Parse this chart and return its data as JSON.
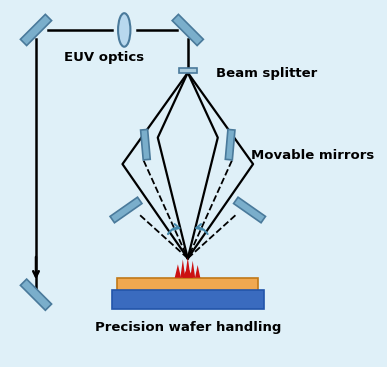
{
  "background_color": "#dff0f8",
  "mirror_color": "#7aaecb",
  "mirror_edge": "#4a7a9b",
  "beam_color": "#000000",
  "wafer_top_color": "#f0a850",
  "wafer_bottom_color": "#3a6bbf",
  "flame_color": "#cc1111",
  "arrow_color": "#4488aa",
  "text_color": "#000000",
  "label_euv": "EUV optics",
  "label_beam_splitter": "Beam splitter",
  "label_movable_mirrors": "Movable mirrors",
  "label_wafer": "Precision wafer handling",
  "figsize": [
    3.87,
    3.67
  ],
  "dpi": 100
}
